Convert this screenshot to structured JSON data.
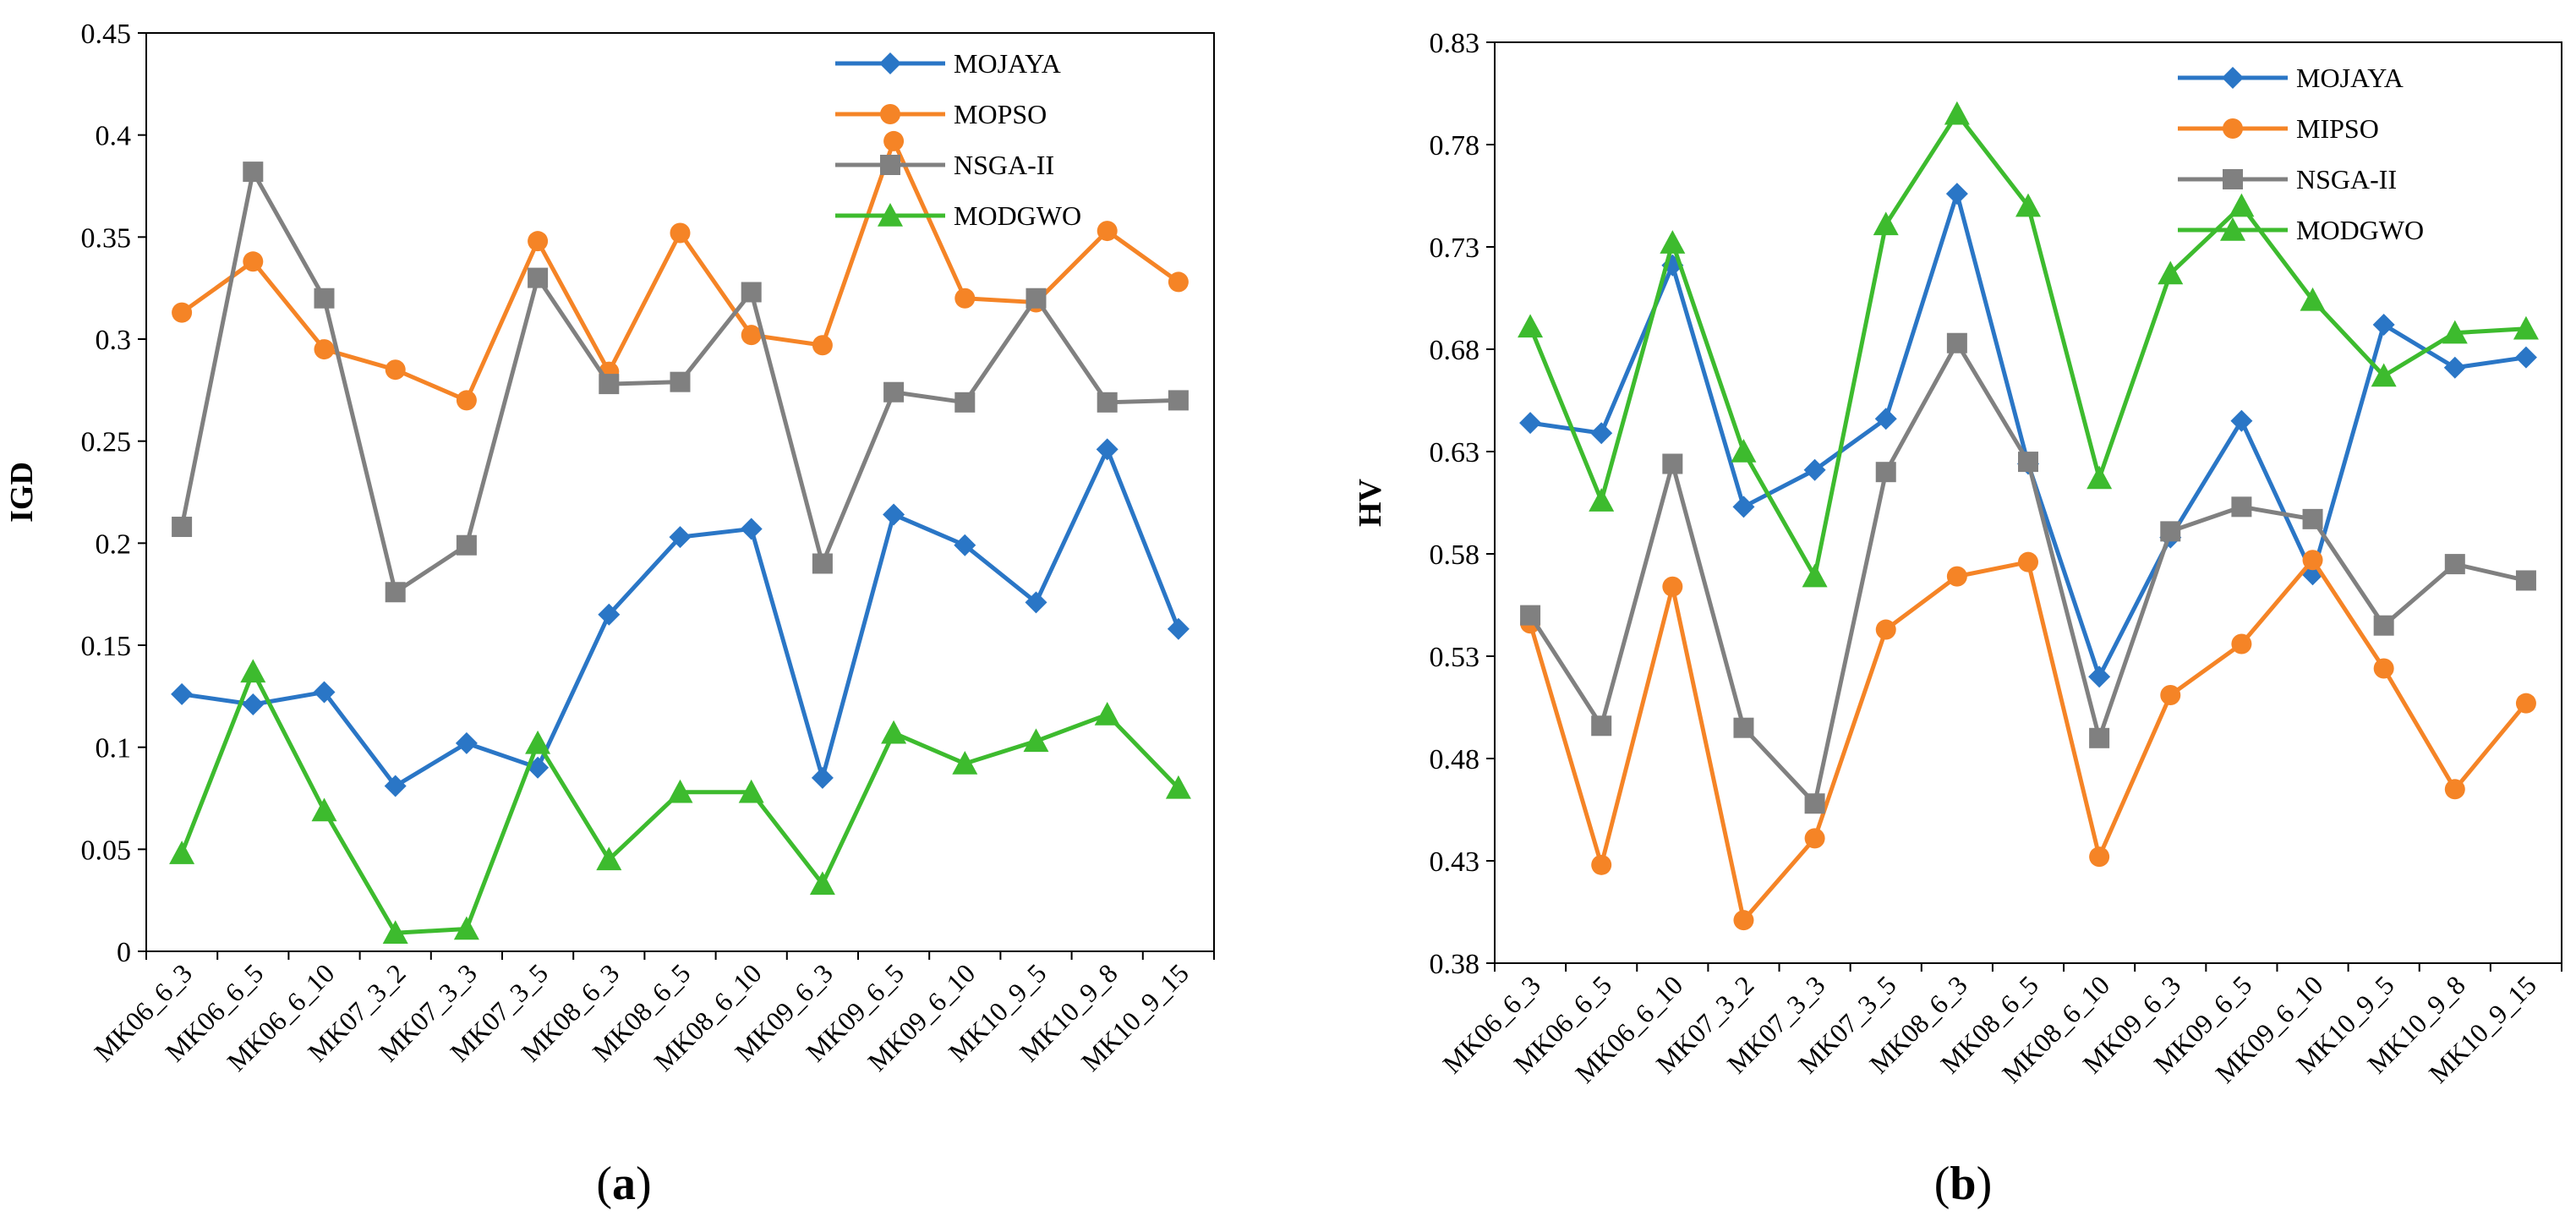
{
  "colors": {
    "blue": "#2A76C6",
    "orange": "#F58426",
    "gray": "#808080",
    "green": "#3DBB2E",
    "grid": "#000000"
  },
  "chart_data": [
    {
      "type": "line",
      "caption": {
        "open": "(",
        "letter": "a",
        "close": ")"
      },
      "ylabel": "IGD",
      "ylim": [
        0,
        0.45
      ],
      "yticks": [
        "0",
        "0.05",
        "0.1",
        "0.15",
        "0.2",
        "0.25",
        "0.3",
        "0.35",
        "0.4",
        "0.45"
      ],
      "grid": false,
      "legend": "top-right",
      "categories": [
        "MK06_6_3",
        "MK06_6_5",
        "MK06_6_10",
        "MK07_3_2",
        "MK07_3_3",
        "MK07_3_5",
        "MK08_6_3",
        "MK08_6_5",
        "MK08_6_10",
        "MK09_6_3",
        "MK09_6_5",
        "MK09_6_10",
        "MK10_9_5",
        "MK10_9_8",
        "MK10_9_15"
      ],
      "series": [
        {
          "name": "MOJAYA",
          "color": "blue",
          "marker": "diamond",
          "values": [
            0.126,
            0.121,
            0.127,
            0.081,
            0.102,
            0.09,
            0.165,
            0.203,
            0.207,
            0.085,
            0.214,
            0.199,
            0.171,
            0.246,
            0.158
          ]
        },
        {
          "name": "MOPSO",
          "color": "orange",
          "marker": "circle",
          "values": [
            0.313,
            0.338,
            0.295,
            0.285,
            0.27,
            0.348,
            0.284,
            0.352,
            0.302,
            0.297,
            0.397,
            0.32,
            0.318,
            0.353,
            0.328
          ]
        },
        {
          "name": "NSGA-II",
          "color": "gray",
          "marker": "square",
          "values": [
            0.208,
            0.382,
            0.32,
            0.176,
            0.199,
            0.33,
            0.278,
            0.279,
            0.323,
            0.19,
            0.274,
            0.269,
            0.32,
            0.269,
            0.27
          ]
        },
        {
          "name": "MODGWO",
          "color": "green",
          "marker": "triangle",
          "values": [
            0.048,
            0.137,
            0.069,
            0.009,
            0.011,
            0.102,
            0.045,
            0.078,
            0.078,
            0.033,
            0.107,
            0.092,
            0.103,
            0.116,
            0.08
          ]
        }
      ]
    },
    {
      "type": "line",
      "caption": {
        "open": "(",
        "letter": "b",
        "close": ")"
      },
      "ylabel": "HV",
      "ylim": [
        0.38,
        0.83
      ],
      "yticks": [
        "0.38",
        "0.43",
        "0.48",
        "0.53",
        "0.58",
        "0.63",
        "0.68",
        "0.73",
        "0.78",
        "0.83"
      ],
      "grid": false,
      "legend": "top-right",
      "categories": [
        "MK06_6_3",
        "MK06_6_5",
        "MK06_6_10",
        "MK07_3_2",
        "MK07_3_3",
        "MK07_3_5",
        "MK08_6_3",
        "MK08_6_5",
        "MK08_6_10",
        "MK09_6_3",
        "MK09_6_5",
        "MK09_6_10",
        "MK10_9_5",
        "MK10_9_8",
        "MK10_9_15"
      ],
      "series": [
        {
          "name": "MOJAYA",
          "color": "blue",
          "marker": "diamond",
          "values": [
            0.644,
            0.639,
            0.721,
            0.603,
            0.621,
            0.646,
            0.756,
            0.624,
            0.52,
            0.588,
            0.645,
            0.57,
            0.692,
            0.671,
            0.676
          ]
        },
        {
          "name": "MIPSO",
          "color": "orange",
          "marker": "circle",
          "values": [
            0.546,
            0.428,
            0.564,
            0.401,
            0.441,
            0.543,
            0.569,
            0.576,
            0.432,
            0.511,
            0.536,
            0.577,
            0.524,
            0.465,
            0.507
          ]
        },
        {
          "name": "NSGA-II",
          "color": "gray",
          "marker": "square",
          "values": [
            0.55,
            0.496,
            0.624,
            0.495,
            0.458,
            0.62,
            0.683,
            0.625,
            0.49,
            0.591,
            0.603,
            0.597,
            0.545,
            0.575,
            0.567
          ]
        },
        {
          "name": "MODGWO",
          "color": "green",
          "marker": "triangle",
          "values": [
            0.691,
            0.606,
            0.732,
            0.63,
            0.569,
            0.741,
            0.795,
            0.75,
            0.617,
            0.717,
            0.75,
            0.704,
            0.667,
            0.688,
            0.69
          ]
        }
      ]
    }
  ]
}
